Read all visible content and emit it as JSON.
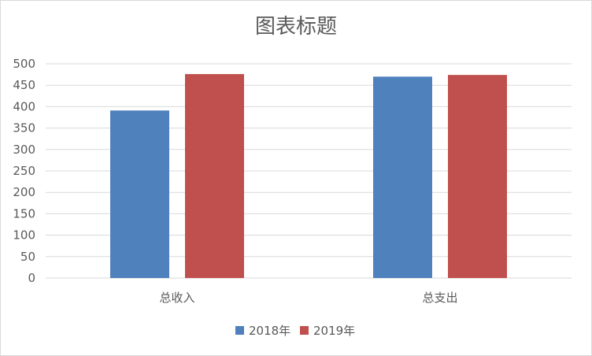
{
  "chart_data": {
    "type": "bar",
    "title": "图表标题",
    "categories": [
      "总收入",
      "总支出"
    ],
    "series": [
      {
        "name": "2018年",
        "values": [
          391,
          470
        ],
        "color": "#4f81bd"
      },
      {
        "name": "2019年",
        "values": [
          476,
          474
        ],
        "color": "#c0504d"
      }
    ],
    "ylim": [
      0,
      500
    ],
    "yticks": [
      0,
      50,
      100,
      150,
      200,
      250,
      300,
      350,
      400,
      450,
      500
    ],
    "grid": true,
    "legend_position": "bottom",
    "gridline_color": "#d9d9d9",
    "axis_text_color": "#595959"
  }
}
